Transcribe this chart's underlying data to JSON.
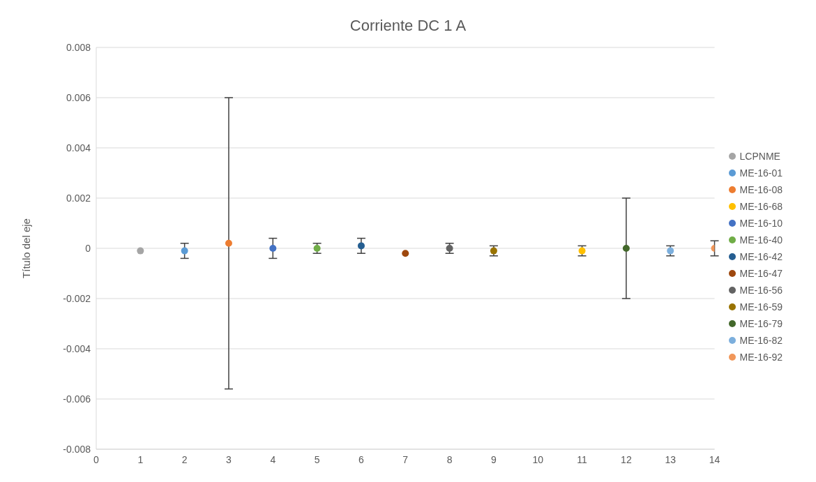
{
  "chart_data": {
    "type": "scatter",
    "title": "Corriente DC 1 A",
    "ylabel": "Título del eje",
    "xlim": [
      0,
      14
    ],
    "xticks": [
      0,
      1,
      2,
      3,
      4,
      5,
      6,
      7,
      8,
      9,
      10,
      11,
      12,
      13,
      14
    ],
    "ylim": [
      -0.008,
      0.008
    ],
    "yticks": [
      -0.008,
      -0.006,
      -0.004,
      -0.002,
      0,
      0.002,
      0.004,
      0.006,
      0.008
    ],
    "grid": "y",
    "legend": "right",
    "marker": "circle",
    "series": [
      {
        "name": "LCPNME",
        "color": "#a5a5a5",
        "x": [
          1
        ],
        "values": [
          -0.0001
        ]
      },
      {
        "name": "ME-16-01",
        "color": "#5b9bd5",
        "x": [
          2
        ],
        "values": [
          -0.0001
        ],
        "errors": [
          0.0003
        ]
      },
      {
        "name": "ME-16-08",
        "color": "#ed7d31",
        "x": [
          3
        ],
        "values": [
          0.0002
        ],
        "errors": [
          0.0058
        ]
      },
      {
        "name": "ME-16-68",
        "color": "#ffc000",
        "x": [
          11
        ],
        "values": [
          -0.0001
        ],
        "errors": [
          0.0002
        ]
      },
      {
        "name": "ME-16-10",
        "color": "#4472c4",
        "x": [
          4
        ],
        "values": [
          0
        ],
        "errors": [
          0.0004
        ]
      },
      {
        "name": "ME-16-40",
        "color": "#70ad47",
        "x": [
          5
        ],
        "values": [
          0
        ],
        "errors": [
          0.0002
        ]
      },
      {
        "name": "ME-16-42",
        "color": "#255e91",
        "x": [
          6
        ],
        "values": [
          0.0001
        ],
        "errors": [
          0.0003
        ]
      },
      {
        "name": "ME-16-47",
        "color": "#9e480e",
        "x": [
          7
        ],
        "values": [
          -0.0002
        ]
      },
      {
        "name": "ME-16-56",
        "color": "#636363",
        "x": [
          8
        ],
        "values": [
          0
        ],
        "errors": [
          0.0002
        ]
      },
      {
        "name": "ME-16-59",
        "color": "#997300",
        "x": [
          9
        ],
        "values": [
          -0.0001
        ],
        "errors": [
          0.0002
        ]
      },
      {
        "name": "ME-16-79",
        "color": "#43682b",
        "x": [
          12
        ],
        "values": [
          0
        ],
        "errors": [
          0.002
        ]
      },
      {
        "name": "ME-16-82",
        "color": "#7cafdd",
        "x": [
          13
        ],
        "values": [
          -0.0001
        ],
        "errors": [
          0.0002
        ]
      },
      {
        "name": "ME-16-92",
        "color": "#f1975a",
        "x": [
          14
        ],
        "values": [
          0
        ],
        "errors": [
          0.0003
        ]
      }
    ]
  }
}
